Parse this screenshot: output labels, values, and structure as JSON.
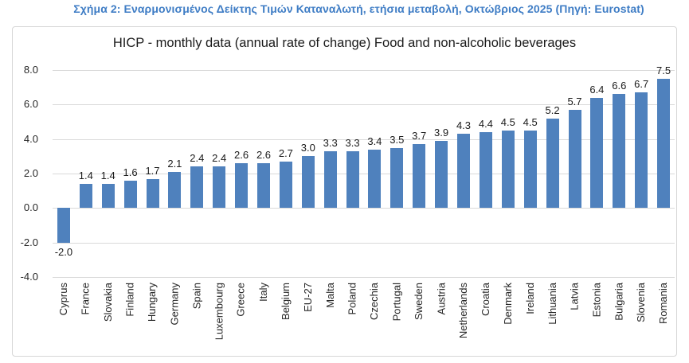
{
  "header": {
    "caption": "Σχήμα 2: Εναρμονισμένος Δείκτης Τιμών Καταναλωτή, ετήσια μεταβολή, Οκτώβριος 2025 (Πηγή: Eurostat)"
  },
  "chart_data": {
    "type": "bar",
    "title": "HICP - monthly data (annual rate of change) Food and non-alcoholic beverages",
    "categories": [
      "Cyprus",
      "France",
      "Slovakia",
      "Finland",
      "Hungary",
      "Germany",
      "Spain",
      "Luxembourg",
      "Greece",
      "Italy",
      "Belgium",
      "EU-27",
      "Malta",
      "Poland",
      "Czechia",
      "Portugal",
      "Sweden",
      "Austria",
      "Netherlands",
      "Croatia",
      "Denmark",
      "Ireland",
      "Lithuania",
      "Latvia",
      "Estonia",
      "Bulgaria",
      "Slovenia",
      "Romania"
    ],
    "values": [
      -2.0,
      1.4,
      1.4,
      1.6,
      1.7,
      2.1,
      2.4,
      2.4,
      2.6,
      2.6,
      2.7,
      3.0,
      3.3,
      3.3,
      3.4,
      3.5,
      3.7,
      3.9,
      4.3,
      4.4,
      4.5,
      4.5,
      5.2,
      5.7,
      6.4,
      6.6,
      6.7,
      7.5
    ],
    "xlabel": "",
    "ylabel": "",
    "ylim": [
      -4.0,
      8.0
    ],
    "ytick_labels": [
      "8.0",
      "6.0",
      "4.0",
      "2.0",
      "0.0",
      "-2.0",
      "-4.0"
    ],
    "grid": true,
    "legend": "none",
    "data_labels": true,
    "x_label_rotation_deg": -90
  },
  "colors": {
    "caption_text": "#3f7dc5",
    "bar": "#4f81bd",
    "gridline": "#d9d9d9",
    "panel_border": "#d6d6d6",
    "label_text": "#1a1a1a"
  }
}
